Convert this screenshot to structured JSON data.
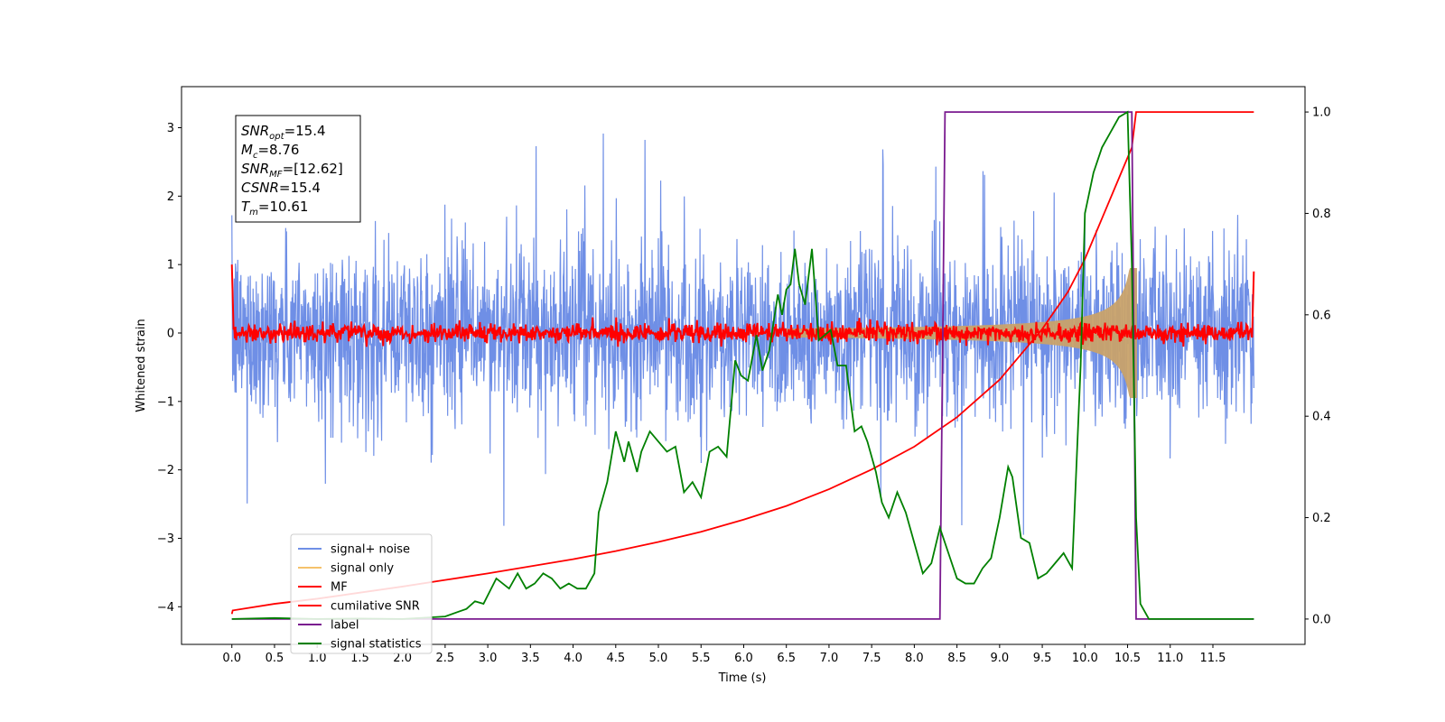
{
  "chart_data": {
    "type": "line",
    "xlabel": "Time (s)",
    "ylabel": "Whitened strain",
    "xlim": [
      -0.59,
      12.58
    ],
    "ylim": [
      -4.55,
      3.6
    ],
    "ylim_right": [
      -0.05,
      1.05
    ],
    "x_ticks": [
      "0.0",
      "0.5",
      "1.0",
      "1.5",
      "2.0",
      "2.5",
      "3.0",
      "3.5",
      "4.0",
      "4.5",
      "5.0",
      "5.5",
      "6.0",
      "6.5",
      "7.0",
      "7.5",
      "8.0",
      "8.5",
      "9.0",
      "9.5",
      "10.0",
      "10.5",
      "11.0",
      "11.5"
    ],
    "y_ticks_left": [
      "3",
      "2",
      "1",
      "0",
      "−1",
      "−2",
      "−3",
      "−4"
    ],
    "y_ticks_right": [
      "1.0",
      "0.8",
      "0.6",
      "0.4",
      "0.2",
      "0.0"
    ],
    "legend_position": "lower-left",
    "legend": [
      "signal+ noise",
      "signal only",
      "MF",
      "cumilative SNR",
      "label",
      "signal statistics"
    ],
    "colors": {
      "signal_noise": "#6f8fe6",
      "signal_only": "#f5c26b",
      "mf": "#ff0000",
      "cumulative_snr": "#ff0000",
      "label": "#7a1a8f",
      "signal_statistics": "#008000"
    },
    "annotation": {
      "snr_opt": {
        "main": "SNR",
        "sub": "opt",
        "value": "=15.4"
      },
      "mc": {
        "main": "M",
        "sub": "c",
        "value": "=8.76"
      },
      "snr_mf": {
        "main": "SNR",
        "sub": "MF",
        "value": "=[12.62]"
      },
      "csnr": {
        "main": "CSNR",
        "sub": "",
        "value": "=15.4"
      },
      "tm": {
        "main": "T",
        "sub": "m",
        "value": "=10.61"
      }
    },
    "noise_x_range": [
      0.0,
      11.98
    ],
    "signal_end": 10.61,
    "label_series": {
      "x": [
        0.0,
        8.3,
        8.36,
        10.55,
        10.6,
        11.98
      ],
      "y": [
        0,
        0,
        1,
        1,
        0,
        0
      ]
    },
    "cumulative_snr_series": {
      "x": [
        0.0,
        0.01,
        0.5,
        1.0,
        1.5,
        2.0,
        2.5,
        3.0,
        3.5,
        4.0,
        4.5,
        5.0,
        5.5,
        6.0,
        6.5,
        7.0,
        7.5,
        8.0,
        8.5,
        9.0,
        9.5,
        9.8,
        10.0,
        10.2,
        10.4,
        10.5,
        10.55,
        10.6,
        10.65,
        11.0,
        11.5,
        11.98
      ],
      "y": [
        0.01,
        0.017,
        0.03,
        0.04,
        0.052,
        0.064,
        0.077,
        0.09,
        0.104,
        0.118,
        0.134,
        0.152,
        0.172,
        0.196,
        0.223,
        0.256,
        0.295,
        0.34,
        0.398,
        0.472,
        0.572,
        0.645,
        0.71,
        0.79,
        0.87,
        0.91,
        0.93,
        1.0,
        1.0,
        1.0,
        1.0,
        1.0
      ]
    },
    "signal_statistics_series": {
      "x": [
        0.0,
        0.5,
        1.0,
        1.5,
        2.0,
        2.5,
        2.75,
        2.85,
        2.95,
        3.1,
        3.25,
        3.35,
        3.45,
        3.55,
        3.65,
        3.75,
        3.85,
        3.95,
        4.05,
        4.15,
        4.25,
        4.3,
        4.4,
        4.5,
        4.6,
        4.65,
        4.75,
        4.8,
        4.9,
        5.0,
        5.1,
        5.2,
        5.3,
        5.4,
        5.5,
        5.6,
        5.7,
        5.8,
        5.9,
        5.97,
        6.05,
        6.15,
        6.22,
        6.3,
        6.4,
        6.45,
        6.5,
        6.55,
        6.6,
        6.65,
        6.72,
        6.8,
        6.88,
        6.95,
        7.02,
        7.1,
        7.2,
        7.3,
        7.38,
        7.45,
        7.55,
        7.62,
        7.7,
        7.8,
        7.9,
        8.0,
        8.1,
        8.2,
        8.3,
        8.4,
        8.5,
        8.6,
        8.7,
        8.8,
        8.9,
        9.0,
        9.1,
        9.15,
        9.25,
        9.35,
        9.45,
        9.55,
        9.65,
        9.75,
        9.85,
        9.95,
        10.0,
        10.1,
        10.2,
        10.3,
        10.4,
        10.5,
        10.55,
        10.6,
        10.65,
        10.75,
        11.0,
        11.5,
        11.98
      ],
      "y": [
        0.0,
        0.002,
        0.0,
        0.001,
        0.0,
        0.005,
        0.02,
        0.035,
        0.03,
        0.08,
        0.06,
        0.09,
        0.06,
        0.07,
        0.09,
        0.08,
        0.06,
        0.07,
        0.06,
        0.06,
        0.09,
        0.21,
        0.27,
        0.37,
        0.31,
        0.35,
        0.29,
        0.33,
        0.37,
        0.35,
        0.33,
        0.34,
        0.25,
        0.27,
        0.24,
        0.33,
        0.34,
        0.32,
        0.51,
        0.48,
        0.47,
        0.56,
        0.49,
        0.53,
        0.64,
        0.6,
        0.65,
        0.66,
        0.73,
        0.66,
        0.62,
        0.73,
        0.55,
        0.56,
        0.57,
        0.5,
        0.5,
        0.37,
        0.38,
        0.35,
        0.29,
        0.23,
        0.2,
        0.25,
        0.21,
        0.15,
        0.09,
        0.11,
        0.18,
        0.13,
        0.08,
        0.07,
        0.07,
        0.1,
        0.12,
        0.2,
        0.3,
        0.28,
        0.16,
        0.15,
        0.08,
        0.09,
        0.11,
        0.13,
        0.1,
        0.5,
        0.8,
        0.88,
        0.93,
        0.96,
        0.99,
        1.0,
        0.7,
        0.2,
        0.03,
        0.0,
        0.0,
        0.0,
        0.0
      ]
    }
  }
}
